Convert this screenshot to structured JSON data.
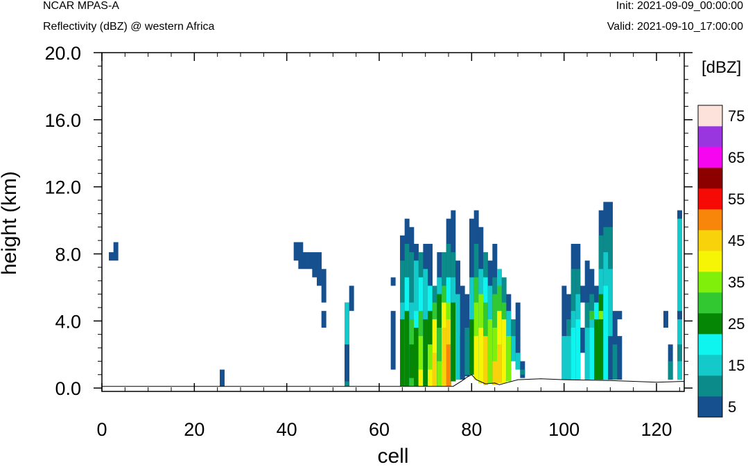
{
  "header": {
    "model": "NCAR MPAS-A",
    "field": "Reflectivity (dBZ) @ western Africa",
    "init": "Init: 2021-09-09_00:00:00",
    "valid": "Valid: 2021-09-10_17:00:00"
  },
  "chart_data": {
    "type": "heatmap",
    "title": "Reflectivity (dBZ) @ western Africa",
    "xlabel": "cell",
    "ylabel": "height (km)",
    "xlim": [
      0,
      126
    ],
    "ylim": [
      -0.2,
      20.0
    ],
    "x_ticks": [
      "0",
      "20",
      "40",
      "60",
      "80",
      "100",
      "120"
    ],
    "y_ticks": [
      "0.0",
      "4.0",
      "8.0",
      "12.0",
      "16.0",
      "20.0"
    ],
    "x_tick_values": [
      0,
      20,
      40,
      60,
      80,
      100,
      120
    ],
    "y_tick_values": [
      0,
      4,
      8,
      12,
      16,
      20
    ],
    "colorbar": {
      "unit_label": "[dBZ]",
      "levels": [
        5,
        10,
        15,
        20,
        25,
        30,
        35,
        40,
        45,
        50,
        55,
        60,
        65,
        70,
        75
      ],
      "labels": [
        "5",
        "15",
        "25",
        "35",
        "45",
        "55",
        "65",
        "75"
      ],
      "colors": [
        "#16508e",
        "#0b8b89",
        "#14c9c9",
        "#0ef5f0",
        "#058605",
        "#32c832",
        "#80f00a",
        "#f5f505",
        "#f8d20a",
        "#f8860a",
        "#f50a05",
        "#8c0000",
        "#f505f0",
        "#9a36e0",
        "#fde2dc"
      ]
    },
    "terrain": [
      [
        0,
        0.1
      ],
      [
        76,
        0.1
      ],
      [
        78,
        0.45
      ],
      [
        79,
        0.65
      ],
      [
        80,
        0.8
      ],
      [
        81,
        0.5
      ],
      [
        83,
        0.25
      ],
      [
        85,
        0.3
      ],
      [
        86,
        0.2
      ],
      [
        88,
        0.35
      ],
      [
        90,
        0.5
      ],
      [
        95,
        0.55
      ],
      [
        100,
        0.5
      ],
      [
        110,
        0.45
      ],
      [
        115,
        0.4
      ],
      [
        120,
        0.35
      ],
      [
        126,
        0.4
      ]
    ],
    "cells": [
      {
        "x": 2,
        "y0": 7.6,
        "y1": 8.1,
        "v": 5
      },
      {
        "x": 3,
        "y0": 7.6,
        "y1": 8.7,
        "v": 5
      },
      {
        "x": 26,
        "y0": 0.1,
        "y1": 1.1,
        "v": 5
      },
      {
        "x": 42,
        "y0": 7.6,
        "y1": 8.7,
        "v": 5
      },
      {
        "x": 43,
        "y0": 7.1,
        "y1": 8.7,
        "v": 5
      },
      {
        "x": 44,
        "y0": 7.1,
        "y1": 8.1,
        "v": 5
      },
      {
        "x": 45,
        "y0": 7.1,
        "y1": 8.1,
        "v": 5
      },
      {
        "x": 46,
        "y0": 6.6,
        "y1": 8.1,
        "v": 5
      },
      {
        "x": 47,
        "y0": 6.1,
        "y1": 8.1,
        "v": 5
      },
      {
        "x": 48,
        "y0": 5.1,
        "y1": 7.1,
        "v": 5
      },
      {
        "x": 48,
        "y0": 3.6,
        "y1": 4.6,
        "v": 5
      },
      {
        "x": 53,
        "y0": 0.1,
        "y1": 5.1,
        "v": 5
      },
      {
        "x": 53,
        "y0": 2.6,
        "y1": 5.1,
        "v": 15
      },
      {
        "x": 53,
        "y0": 0.1,
        "y1": 0.4,
        "v": 10
      },
      {
        "x": 54,
        "y0": 4.6,
        "y1": 6.1,
        "v": 5
      },
      {
        "x": 63,
        "y0": 6.1,
        "y1": 6.6,
        "v": 5
      },
      {
        "x": 63,
        "y0": 1.1,
        "y1": 4.6,
        "v": 5
      },
      {
        "x": 65,
        "y0": 0.1,
        "y1": 9.1,
        "v": 5
      },
      {
        "x": 65,
        "y0": 0.1,
        "y1": 7.6,
        "v": 10
      },
      {
        "x": 65,
        "y0": 0.1,
        "y1": 5.1,
        "v": 15
      },
      {
        "x": 65,
        "y0": 0.1,
        "y1": 4.1,
        "v": 25
      },
      {
        "x": 66,
        "y0": 0.1,
        "y1": 10.1,
        "v": 5
      },
      {
        "x": 66,
        "y0": 0.1,
        "y1": 8.6,
        "v": 10
      },
      {
        "x": 66,
        "y0": 0.1,
        "y1": 6.6,
        "v": 20
      },
      {
        "x": 66,
        "y0": 0.1,
        "y1": 4.6,
        "v": 25
      },
      {
        "x": 67,
        "y0": 0.1,
        "y1": 9.6,
        "v": 5
      },
      {
        "x": 67,
        "y0": 0.1,
        "y1": 8.1,
        "v": 10
      },
      {
        "x": 67,
        "y0": 0.1,
        "y1": 5.1,
        "v": 15
      },
      {
        "x": 67,
        "y0": 0.1,
        "y1": 4.1,
        "v": 30
      },
      {
        "x": 67,
        "y0": 0.6,
        "y1": 2.6,
        "v": 25
      },
      {
        "x": 68,
        "y0": 0.1,
        "y1": 8.6,
        "v": 5
      },
      {
        "x": 68,
        "y0": 0.1,
        "y1": 7.6,
        "v": 15
      },
      {
        "x": 68,
        "y0": 0.1,
        "y1": 4.6,
        "v": 20
      },
      {
        "x": 68,
        "y0": 0.1,
        "y1": 3.6,
        "v": 25
      },
      {
        "x": 69,
        "y0": 0.1,
        "y1": 8.1,
        "v": 10
      },
      {
        "x": 69,
        "y0": 0.1,
        "y1": 6.6,
        "v": 20
      },
      {
        "x": 69,
        "y0": 0.1,
        "y1": 4.6,
        "v": 30
      },
      {
        "x": 69,
        "y0": 0.1,
        "y1": 3.1,
        "v": 35
      },
      {
        "x": 69,
        "y0": 0.1,
        "y1": 1.1,
        "v": 40
      },
      {
        "x": 70,
        "y0": 0.1,
        "y1": 8.6,
        "v": 5
      },
      {
        "x": 70,
        "y0": 0.1,
        "y1": 7.1,
        "v": 15
      },
      {
        "x": 70,
        "y0": 0.1,
        "y1": 4.1,
        "v": 25
      },
      {
        "x": 71,
        "y0": 0.1,
        "y1": 8.6,
        "v": 5
      },
      {
        "x": 71,
        "y0": 0.1,
        "y1": 6.1,
        "v": 20
      },
      {
        "x": 71,
        "y0": 0.1,
        "y1": 4.6,
        "v": 25
      },
      {
        "x": 71,
        "y0": 0.1,
        "y1": 2.6,
        "v": 35
      },
      {
        "x": 71,
        "y0": 0.1,
        "y1": 1.1,
        "v": 40
      },
      {
        "x": 72,
        "y0": 0.1,
        "y1": 6.1,
        "v": 10
      },
      {
        "x": 72,
        "y0": 0.1,
        "y1": 5.1,
        "v": 30
      },
      {
        "x": 72,
        "y0": 0.1,
        "y1": 4.1,
        "v": 40
      },
      {
        "x": 72,
        "y0": 0.1,
        "y1": 2.1,
        "v": 45
      },
      {
        "x": 73,
        "y0": 0.1,
        "y1": 8.1,
        "v": 5
      },
      {
        "x": 73,
        "y0": 0.1,
        "y1": 6.6,
        "v": 15
      },
      {
        "x": 73,
        "y0": 0.1,
        "y1": 5.6,
        "v": 25
      },
      {
        "x": 73,
        "y0": 0.1,
        "y1": 3.6,
        "v": 30
      },
      {
        "x": 73,
        "y0": 0.1,
        "y1": 1.6,
        "v": 35
      },
      {
        "x": 74,
        "y0": 0.1,
        "y1": 8.1,
        "v": 10
      },
      {
        "x": 74,
        "y0": 0.1,
        "y1": 6.1,
        "v": 30
      },
      {
        "x": 74,
        "y0": 0.1,
        "y1": 5.1,
        "v": 40
      },
      {
        "x": 74,
        "y0": 0.1,
        "y1": 3.6,
        "v": 45
      },
      {
        "x": 75,
        "y0": 0.1,
        "y1": 10.1,
        "v": 5
      },
      {
        "x": 75,
        "y0": 0.1,
        "y1": 8.6,
        "v": 10
      },
      {
        "x": 75,
        "y0": 0.1,
        "y1": 6.6,
        "v": 20
      },
      {
        "x": 75,
        "y0": 0.1,
        "y1": 5.1,
        "v": 35
      },
      {
        "x": 75,
        "y0": 0.1,
        "y1": 4.1,
        "v": 45
      },
      {
        "x": 75,
        "y0": 0.1,
        "y1": 2.6,
        "v": 50
      },
      {
        "x": 76,
        "y0": 0.4,
        "y1": 10.6,
        "v": 5
      },
      {
        "x": 76,
        "y0": 0.4,
        "y1": 8.1,
        "v": 10
      },
      {
        "x": 76,
        "y0": 0.4,
        "y1": 6.6,
        "v": 15
      },
      {
        "x": 76,
        "y0": 0.4,
        "y1": 5.1,
        "v": 25
      },
      {
        "x": 77,
        "y0": 0.5,
        "y1": 7.6,
        "v": 5
      },
      {
        "x": 77,
        "y0": 0.5,
        "y1": 5.6,
        "v": 15
      },
      {
        "x": 78,
        "y0": 0.5,
        "y1": 6.1,
        "v": 5
      },
      {
        "x": 78,
        "y0": 0.6,
        "y1": 3.1,
        "v": 5
      },
      {
        "x": 79,
        "y0": 0.7,
        "y1": 5.6,
        "v": 5
      },
      {
        "x": 79,
        "y0": 0.8,
        "y1": 3.6,
        "v": 10
      },
      {
        "x": 80,
        "y0": 0.8,
        "y1": 10.1,
        "v": 5
      },
      {
        "x": 80,
        "y0": 0.8,
        "y1": 6.6,
        "v": 15
      },
      {
        "x": 80,
        "y0": 0.8,
        "y1": 4.1,
        "v": 25
      },
      {
        "x": 81,
        "y0": 0.5,
        "y1": 10.6,
        "v": 5
      },
      {
        "x": 81,
        "y0": 0.5,
        "y1": 8.6,
        "v": 10
      },
      {
        "x": 81,
        "y0": 0.5,
        "y1": 6.6,
        "v": 30
      },
      {
        "x": 81,
        "y0": 0.5,
        "y1": 5.1,
        "v": 35
      },
      {
        "x": 81,
        "y0": 0.5,
        "y1": 3.1,
        "v": 40
      },
      {
        "x": 82,
        "y0": 0.3,
        "y1": 9.6,
        "v": 5
      },
      {
        "x": 82,
        "y0": 0.3,
        "y1": 7.1,
        "v": 15
      },
      {
        "x": 82,
        "y0": 0.3,
        "y1": 5.6,
        "v": 35
      },
      {
        "x": 82,
        "y0": 0.3,
        "y1": 3.6,
        "v": 40
      },
      {
        "x": 83,
        "y0": 0.2,
        "y1": 8.1,
        "v": 10
      },
      {
        "x": 83,
        "y0": 0.2,
        "y1": 6.6,
        "v": 20
      },
      {
        "x": 83,
        "y0": 0.2,
        "y1": 5.1,
        "v": 30
      },
      {
        "x": 83,
        "y0": 0.2,
        "y1": 3.1,
        "v": 45
      },
      {
        "x": 84,
        "y0": 0.3,
        "y1": 7.6,
        "v": 5
      },
      {
        "x": 84,
        "y0": 0.3,
        "y1": 6.1,
        "v": 15
      },
      {
        "x": 84,
        "y0": 0.3,
        "y1": 4.1,
        "v": 35
      },
      {
        "x": 85,
        "y0": 0.2,
        "y1": 8.6,
        "v": 5
      },
      {
        "x": 85,
        "y0": 0.2,
        "y1": 6.6,
        "v": 10
      },
      {
        "x": 85,
        "y0": 0.2,
        "y1": 5.6,
        "v": 30
      },
      {
        "x": 85,
        "y0": 0.2,
        "y1": 3.6,
        "v": 35
      },
      {
        "x": 85,
        "y0": 0.2,
        "y1": 1.6,
        "v": 45
      },
      {
        "x": 86,
        "y0": 0.3,
        "y1": 7.1,
        "v": 15
      },
      {
        "x": 86,
        "y0": 0.3,
        "y1": 6.1,
        "v": 30
      },
      {
        "x": 86,
        "y0": 0.3,
        "y1": 4.6,
        "v": 40
      },
      {
        "x": 86,
        "y0": 0.3,
        "y1": 2.6,
        "v": 45
      },
      {
        "x": 87,
        "y0": 0.3,
        "y1": 6.6,
        "v": 10
      },
      {
        "x": 87,
        "y0": 0.3,
        "y1": 5.1,
        "v": 30
      },
      {
        "x": 87,
        "y0": 0.3,
        "y1": 4.1,
        "v": 40
      },
      {
        "x": 88,
        "y0": 0.4,
        "y1": 5.6,
        "v": 5
      },
      {
        "x": 88,
        "y0": 0.4,
        "y1": 4.6,
        "v": 15
      },
      {
        "x": 88,
        "y0": 0.4,
        "y1": 3.1,
        "v": 35
      },
      {
        "x": 89,
        "y0": 1.6,
        "y1": 4.1,
        "v": 10
      },
      {
        "x": 89,
        "y0": 1.6,
        "y1": 3.1,
        "v": 15
      },
      {
        "x": 90,
        "y0": 1.1,
        "y1": 5.1,
        "v": 5
      },
      {
        "x": 90,
        "y0": 1.1,
        "y1": 2.1,
        "v": 15
      },
      {
        "x": 91,
        "y0": 0.6,
        "y1": 1.6,
        "v": 5
      },
      {
        "x": 91,
        "y0": 0.8,
        "y1": 1.1,
        "v": 10
      },
      {
        "x": 100,
        "y0": 0.5,
        "y1": 6.1,
        "v": 5
      },
      {
        "x": 100,
        "y0": 0.5,
        "y1": 3.1,
        "v": 15
      },
      {
        "x": 101,
        "y0": 0.5,
        "y1": 5.6,
        "v": 5
      },
      {
        "x": 101,
        "y0": 0.5,
        "y1": 4.1,
        "v": 10
      },
      {
        "x": 101,
        "y0": 0.5,
        "y1": 3.1,
        "v": 15
      },
      {
        "x": 102,
        "y0": 0.5,
        "y1": 8.6,
        "v": 5
      },
      {
        "x": 102,
        "y0": 0.5,
        "y1": 7.1,
        "v": 10
      },
      {
        "x": 102,
        "y0": 0.5,
        "y1": 4.6,
        "v": 15
      },
      {
        "x": 102,
        "y0": 0.5,
        "y1": 3.6,
        "v": 20
      },
      {
        "x": 103,
        "y0": 0.5,
        "y1": 8.6,
        "v": 5
      },
      {
        "x": 103,
        "y0": 0.5,
        "y1": 7.1,
        "v": 10
      },
      {
        "x": 103,
        "y0": 0.5,
        "y1": 5.6,
        "v": 15
      },
      {
        "x": 103,
        "y0": 0.5,
        "y1": 4.1,
        "v": 20
      },
      {
        "x": 104,
        "y0": 5.1,
        "y1": 6.1,
        "v": 5
      },
      {
        "x": 104,
        "y0": 2.1,
        "y1": 3.6,
        "v": 5
      },
      {
        "x": 105,
        "y0": 0.5,
        "y1": 7.6,
        "v": 5
      },
      {
        "x": 105,
        "y0": 0.5,
        "y1": 5.1,
        "v": 10
      },
      {
        "x": 105,
        "y0": 0.5,
        "y1": 3.6,
        "v": 15
      },
      {
        "x": 106,
        "y0": 0.5,
        "y1": 7.1,
        "v": 5
      },
      {
        "x": 106,
        "y0": 0.5,
        "y1": 5.6,
        "v": 10
      },
      {
        "x": 106,
        "y0": 0.5,
        "y1": 4.6,
        "v": 15
      },
      {
        "x": 106,
        "y0": 4.1,
        "y1": 4.6,
        "v": 30
      },
      {
        "x": 106,
        "y0": 0.5,
        "y1": 3.6,
        "v": 20
      },
      {
        "x": 107,
        "y0": 0.5,
        "y1": 6.1,
        "v": 5
      },
      {
        "x": 107,
        "y0": 0.5,
        "y1": 5.1,
        "v": 20
      },
      {
        "x": 107,
        "y0": 0.5,
        "y1": 4.1,
        "v": 25
      },
      {
        "x": 108,
        "y0": 0.5,
        "y1": 10.6,
        "v": 5
      },
      {
        "x": 108,
        "y0": 0.5,
        "y1": 9.1,
        "v": 10
      },
      {
        "x": 108,
        "y0": 0.5,
        "y1": 7.1,
        "v": 15
      },
      {
        "x": 108,
        "y0": 0.5,
        "y1": 5.6,
        "v": 25
      },
      {
        "x": 108,
        "y0": 4.1,
        "y1": 4.6,
        "v": 35
      },
      {
        "x": 108,
        "y0": 0.5,
        "y1": 3.6,
        "v": 25
      },
      {
        "x": 109,
        "y0": 0.5,
        "y1": 11.1,
        "v": 5
      },
      {
        "x": 109,
        "y0": 0.5,
        "y1": 9.6,
        "v": 10
      },
      {
        "x": 109,
        "y0": 0.5,
        "y1": 8.1,
        "v": 15
      },
      {
        "x": 109,
        "y0": 0.5,
        "y1": 6.1,
        "v": 20
      },
      {
        "x": 110,
        "y0": 0.5,
        "y1": 11.1,
        "v": 5
      },
      {
        "x": 110,
        "y0": 0.5,
        "y1": 9.6,
        "v": 10
      },
      {
        "x": 110,
        "y0": 0.5,
        "y1": 7.1,
        "v": 15
      },
      {
        "x": 110,
        "y0": 0.5,
        "y1": 3.1,
        "v": 5
      },
      {
        "x": 111,
        "y0": 0.5,
        "y1": 4.6,
        "v": 5
      },
      {
        "x": 111,
        "y0": 0.5,
        "y1": 2.6,
        "v": 10
      },
      {
        "x": 112,
        "y0": 4.1,
        "y1": 4.6,
        "v": 5
      },
      {
        "x": 112,
        "y0": 0.5,
        "y1": 3.1,
        "v": 5
      },
      {
        "x": 122,
        "y0": 3.6,
        "y1": 4.6,
        "v": 5
      },
      {
        "x": 123,
        "y0": 0.5,
        "y1": 2.6,
        "v": 5
      },
      {
        "x": 123,
        "y0": 0.5,
        "y1": 1.6,
        "v": 10
      },
      {
        "x": 125,
        "y0": 0.5,
        "y1": 10.6,
        "v": 5
      },
      {
        "x": 125,
        "y0": 0.5,
        "y1": 10.1,
        "v": 15
      },
      {
        "x": 125,
        "y0": 0.5,
        "y1": 4.6,
        "v": 5
      },
      {
        "x": 125,
        "y0": 0.5,
        "y1": 4.1,
        "v": 15
      },
      {
        "x": 125,
        "y0": 0.5,
        "y1": 2.6,
        "v": 10
      },
      {
        "x": 125,
        "y0": 0.5,
        "y1": 1.6,
        "v": 15
      }
    ]
  }
}
